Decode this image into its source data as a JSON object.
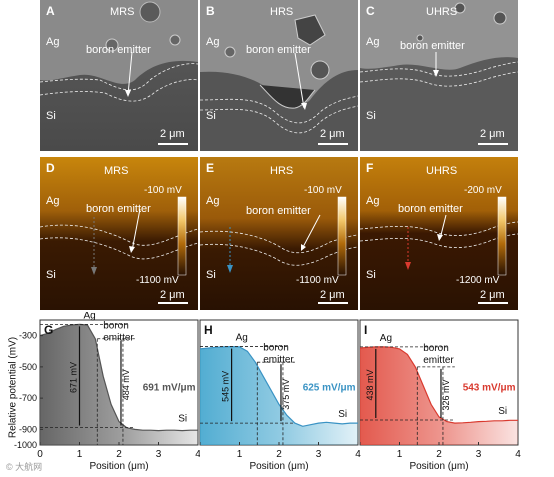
{
  "figure": {
    "sem_panels": [
      {
        "letter": "A",
        "title": "MRS",
        "ag": "Ag",
        "si": "Si",
        "emitter": "boron emitter",
        "scale": "2 μm"
      },
      {
        "letter": "B",
        "title": "HRS",
        "ag": "Ag",
        "si": "Si",
        "emitter": "boron emitter",
        "scale": "2 μm"
      },
      {
        "letter": "C",
        "title": "UHRS",
        "ag": "Ag",
        "si": "Si",
        "emitter": "boron emitter",
        "scale": "2 μm"
      }
    ],
    "kpfm_panels": [
      {
        "letter": "D",
        "title": "MRS",
        "ag": "Ag",
        "si": "Si",
        "emitter": "boron emitter",
        "top": "-100 mV",
        "bottom": "-1100 mV",
        "scale": "2 μm"
      },
      {
        "letter": "E",
        "title": "HRS",
        "ag": "Ag",
        "si": "Si",
        "emitter": "boron emitter",
        "top": "-100 mV",
        "bottom": "-1100 mV",
        "scale": "2 μm"
      },
      {
        "letter": "F",
        "title": "UHRS",
        "ag": "Ag",
        "si": "Si",
        "emitter": "boron emitter",
        "top": "-200 mV",
        "bottom": "-1200 mV",
        "scale": "2 μm"
      }
    ],
    "ylabel": "Relative potential (mV)",
    "watermark": "© 大航网"
  },
  "chart_data": [
    {
      "type": "area",
      "letter": "G",
      "xlabel": "Position (μm)",
      "xlim": [
        0,
        4
      ],
      "ylim": [
        -1000,
        -200
      ],
      "x": [
        0,
        0.2,
        0.4,
        0.6,
        0.8,
        1.0,
        1.2,
        1.4,
        1.6,
        1.8,
        2.0,
        2.2,
        2.4,
        2.6,
        2.8,
        3.0,
        3.2,
        3.4,
        3.6,
        3.8,
        4.0
      ],
      "y": [
        -300,
        -285,
        -260,
        -240,
        -232,
        -228,
        -232,
        -320,
        -560,
        -740,
        -850,
        -890,
        -900,
        -905,
        -905,
        -908,
        -905,
        -905,
        -908,
        -905,
        -905
      ],
      "ag_label": "Ag",
      "emitter_label": "boron",
      "emitter_label2": "emitter",
      "si_label": "Si",
      "total_drop": "671 mV",
      "emitter_drop": "484 mV",
      "gradient": "691 mV/μm",
      "color": "#555555",
      "accent": "#555555"
    },
    {
      "type": "area",
      "letter": "H",
      "xlabel": "Position (μm)",
      "xlim": [
        0,
        4
      ],
      "ylim": [
        -1000,
        -200
      ],
      "x": [
        0,
        0.2,
        0.4,
        0.6,
        0.8,
        1.0,
        1.2,
        1.4,
        1.6,
        1.8,
        2.0,
        2.2,
        2.4,
        2.6,
        2.8,
        3.0,
        3.2,
        3.4,
        3.6,
        3.8,
        4.0
      ],
      "y": [
        -385,
        -380,
        -375,
        -372,
        -370,
        -372,
        -400,
        -470,
        -560,
        -650,
        -740,
        -810,
        -860,
        -880,
        -870,
        -860,
        -855,
        -860,
        -865,
        -860,
        -860
      ],
      "ag_label": "Ag",
      "emitter_label": "boron",
      "emitter_label2": "emitter",
      "si_label": "Si",
      "total_drop": "545 mV",
      "emitter_drop": "375 mV",
      "gradient": "625 mV/μm",
      "color": "#3fa4cd",
      "accent": "#3a93c4"
    },
    {
      "type": "area",
      "letter": "I",
      "xlabel": "Position (μm)",
      "xlim": [
        0,
        4
      ],
      "ylim": [
        -1000,
        -200
      ],
      "x": [
        0,
        0.2,
        0.4,
        0.6,
        0.8,
        1.0,
        1.2,
        1.4,
        1.6,
        1.8,
        2.0,
        2.2,
        2.4,
        2.6,
        2.8,
        3.0,
        3.2,
        3.4,
        3.6,
        3.8,
        4.0
      ],
      "y": [
        -380,
        -375,
        -372,
        -372,
        -375,
        -385,
        -420,
        -500,
        -620,
        -740,
        -820,
        -850,
        -860,
        -858,
        -855,
        -850,
        -848,
        -845,
        -845,
        -842,
        -842
      ],
      "ag_label": "Ag",
      "emitter_label": "boron",
      "emitter_label2": "emitter",
      "si_label": "Si",
      "total_drop": "438 mV",
      "emitter_drop": "326 mV",
      "gradient": "543 mV/μm",
      "color": "#e0473a",
      "accent": "#d93a2f"
    }
  ]
}
